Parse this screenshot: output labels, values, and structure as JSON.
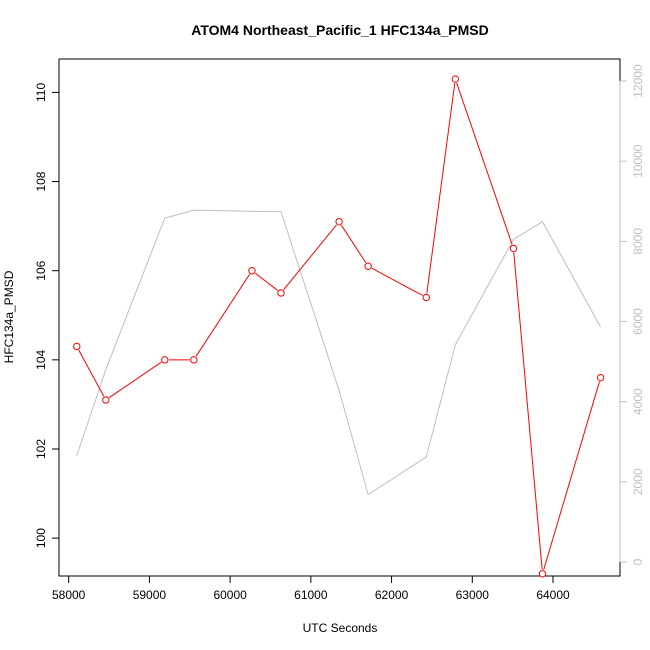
{
  "chart_data": {
    "type": "line",
    "title": "ATOM4 Northeast_Pacific_1 HFC134a_PMSD",
    "xlabel": "UTC Seconds",
    "ylabel": "HFC134a_PMSD",
    "xlim": [
      57880,
      64830
    ],
    "ylim": [
      99.15,
      110.75
    ],
    "y2lim": [
      -350,
      12550
    ],
    "x_ticks": [
      58000,
      59000,
      60000,
      61000,
      62000,
      63000,
      64000
    ],
    "y_ticks": [
      100,
      102,
      104,
      106,
      108,
      110
    ],
    "y2_ticks": [
      0,
      2000,
      4000,
      6000,
      8000,
      10000,
      12000
    ],
    "series": [
      {
        "axis": "left",
        "color": "#ff0000",
        "marker": "circle",
        "x": [
          58100,
          58460,
          59190,
          59550,
          60270,
          60630,
          61350,
          61710,
          62430,
          62790,
          63510,
          63870,
          64590
        ],
        "y": [
          104.3,
          103.1,
          104.0,
          104.0,
          106.0,
          105.5,
          107.1,
          106.1,
          105.4,
          110.3,
          106.5,
          99.2,
          103.6
        ]
      },
      {
        "axis": "right",
        "color": "#bebebe",
        "marker": "none",
        "x": [
          58100,
          58460,
          59190,
          59550,
          60270,
          60630,
          61350,
          61710,
          62430,
          62790,
          63510,
          63870,
          64590
        ],
        "y": [
          2650,
          4800,
          8580,
          8780,
          8750,
          8740,
          4280,
          1680,
          2620,
          5420,
          8050,
          8490,
          5860
        ]
      }
    ]
  }
}
